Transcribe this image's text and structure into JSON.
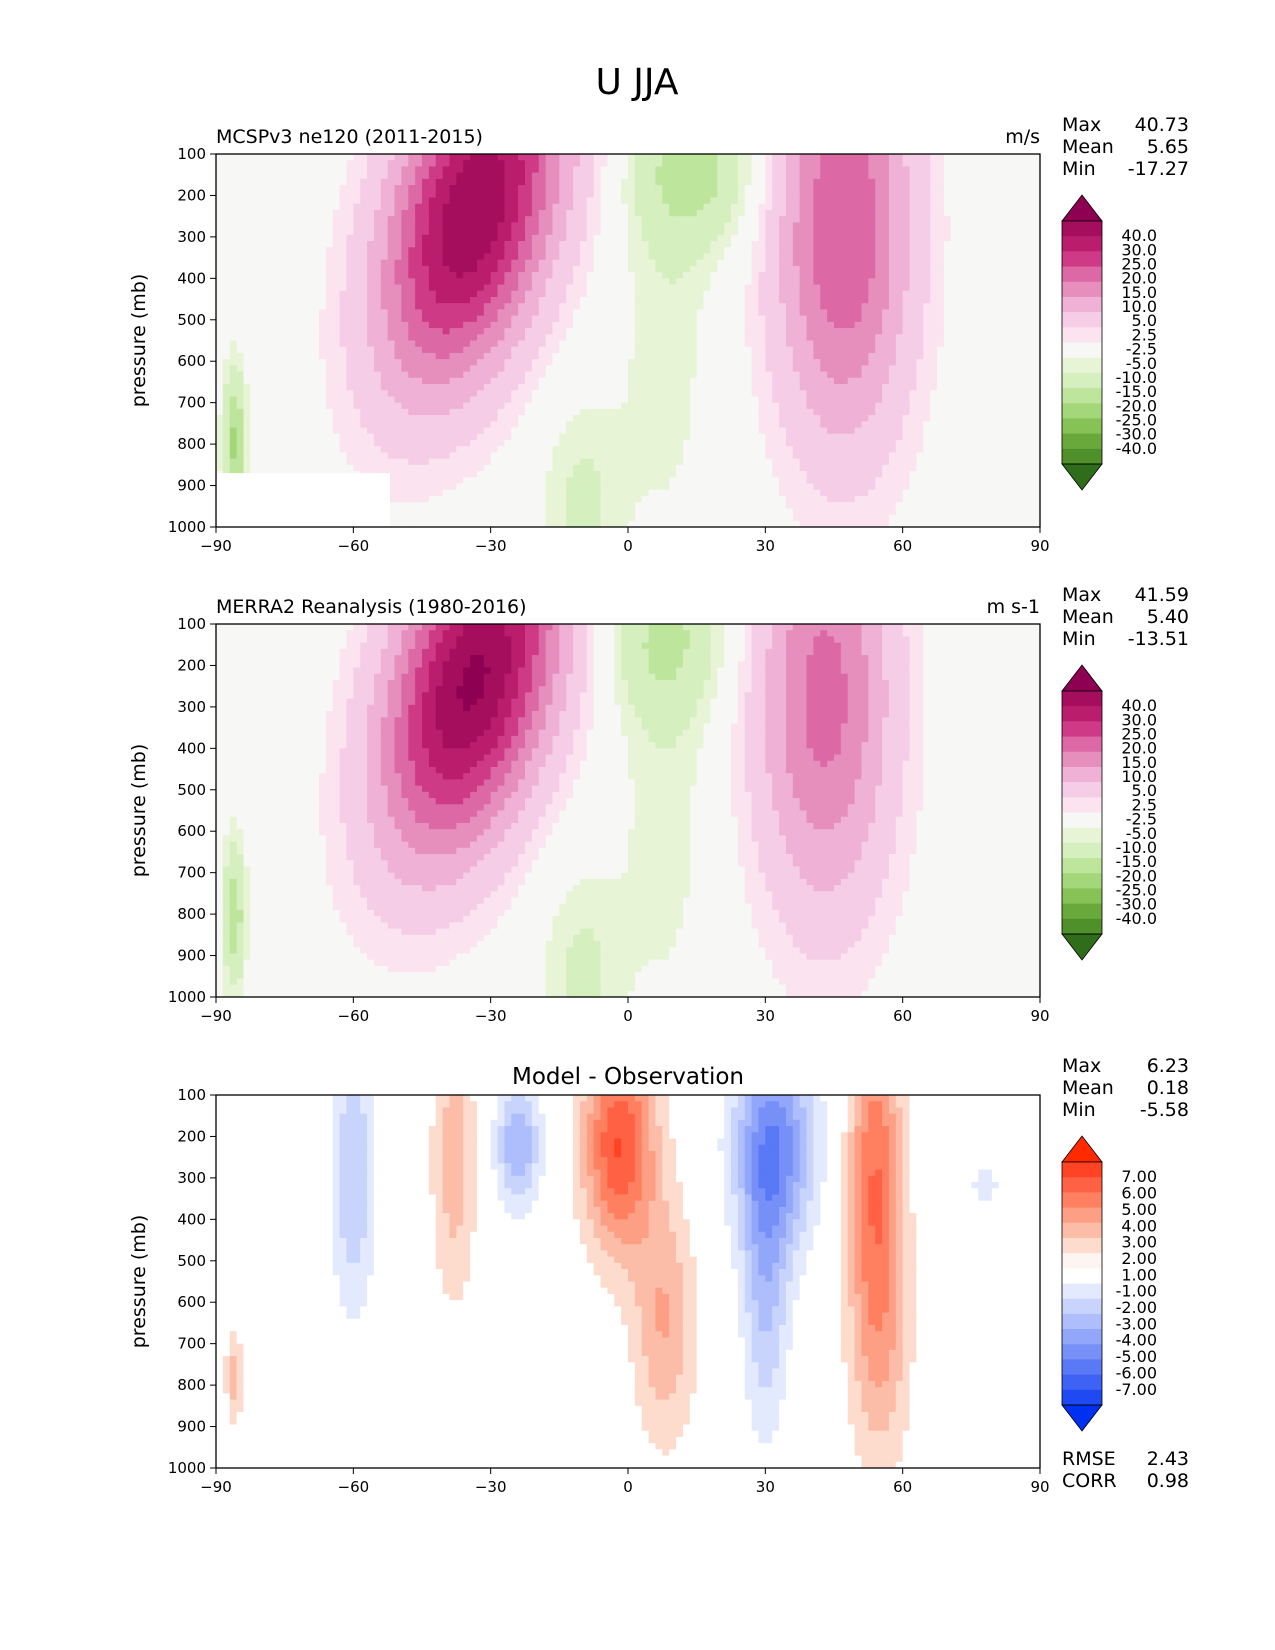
{
  "figure": {
    "suptitle": "U JJA"
  },
  "chart_data": [
    {
      "type": "heatmap",
      "title": "MCSPv3 ne120 (2011-2015)",
      "units": "m/s",
      "xlabel": "",
      "ylabel": "pressure (mb)",
      "xlim": [
        -90,
        90
      ],
      "ylim": [
        1000,
        100
      ],
      "y_scale": "linear, inverted",
      "xticks": [
        "−90",
        "−60",
        "−30",
        "0",
        "30",
        "60",
        "90"
      ],
      "yticks": [
        "100",
        "200",
        "300",
        "400",
        "500",
        "600",
        "700",
        "800",
        "900",
        "1000"
      ],
      "stats": {
        "max": "40.73",
        "mean": "5.65",
        "min": "-17.27"
      },
      "colorbar": {
        "labels": [
          "40.0",
          "30.0",
          "25.0",
          "20.0",
          "15.0",
          "10.0",
          "5.0",
          "2.5",
          "-2.5",
          "-5.0",
          "-10.0",
          "-15.0",
          "-20.0",
          "-25.0",
          "-30.0",
          "-40.0"
        ],
        "colors": [
          "#8e0152",
          "#a50e5d",
          "#bb1d6d",
          "#cf3a86",
          "#dc68a6",
          "#e68fbd",
          "#efb1d5",
          "#f6cde6",
          "#fbe3f0",
          "#f7f7f5",
          "#e7f4d6",
          "#d5efbf",
          "#bde59c",
          "#a3d77a",
          "#86c255",
          "#69a83b",
          "#4f902a",
          "#2f6d1b"
        ]
      },
      "features": [
        {
          "name": "Southern jet core",
          "lat": -30,
          "p": 200,
          "u": 40
        },
        {
          "name": "Northern jet core",
          "lat": 47,
          "p": 200,
          "u": 25
        },
        {
          "name": "Tropical easterlies",
          "lat": 15,
          "p": 120,
          "u": -12
        },
        {
          "name": "Surface easterlies",
          "lat": -10,
          "p": 900,
          "u": -6
        },
        {
          "name": "Polar easterlies",
          "lat": -86,
          "p": 800,
          "u": -16
        }
      ]
    },
    {
      "type": "heatmap",
      "title": "MERRA2 Reanalysis (1980-2016)",
      "units": "m s-1",
      "xlabel": "",
      "ylabel": "pressure (mb)",
      "xlim": [
        -90,
        90
      ],
      "ylim": [
        1000,
        100
      ],
      "y_scale": "linear, inverted",
      "xticks": [
        "−90",
        "−60",
        "−30",
        "0",
        "30",
        "60",
        "90"
      ],
      "yticks": [
        "100",
        "200",
        "300",
        "400",
        "500",
        "600",
        "700",
        "800",
        "900",
        "1000"
      ],
      "stats": {
        "max": "41.59",
        "mean": "5.40",
        "min": "-13.51"
      },
      "colorbar": {
        "labels": [
          "40.0",
          "30.0",
          "25.0",
          "20.0",
          "15.0",
          "10.0",
          "5.0",
          "2.5",
          "-2.5",
          "-5.0",
          "-10.0",
          "-15.0",
          "-20.0",
          "-25.0",
          "-30.0",
          "-40.0"
        ],
        "colors": [
          "#8e0152",
          "#a50e5d",
          "#bb1d6d",
          "#cf3a86",
          "#dc68a6",
          "#e68fbd",
          "#efb1d5",
          "#f6cde6",
          "#fbe3f0",
          "#f7f7f5",
          "#e7f4d6",
          "#d5efbf",
          "#bde59c",
          "#a3d77a",
          "#86c255",
          "#69a83b",
          "#4f902a",
          "#2f6d1b"
        ]
      },
      "features": [
        {
          "name": "Southern jet core",
          "lat": -30,
          "p": 200,
          "u": 41
        },
        {
          "name": "Northern jet core",
          "lat": 43,
          "p": 200,
          "u": 22
        },
        {
          "name": "Tropical easterlies",
          "lat": 8,
          "p": 150,
          "u": -10
        },
        {
          "name": "Surface easterlies",
          "lat": -10,
          "p": 900,
          "u": -6
        },
        {
          "name": "Polar easterlies",
          "lat": -86,
          "p": 800,
          "u": -13
        }
      ]
    },
    {
      "type": "heatmap",
      "title": "Model - Observation",
      "units": "",
      "xlabel": "",
      "ylabel": "pressure (mb)",
      "xlim": [
        -90,
        90
      ],
      "ylim": [
        1000,
        100
      ],
      "y_scale": "linear, inverted",
      "xticks": [
        "−90",
        "−60",
        "−30",
        "0",
        "30",
        "60",
        "90"
      ],
      "yticks": [
        "100",
        "200",
        "300",
        "400",
        "500",
        "600",
        "700",
        "800",
        "900",
        "1000"
      ],
      "stats": {
        "max": "6.23",
        "mean": "0.18",
        "min": "-5.58"
      },
      "metrics": {
        "rmse": "2.43",
        "corr": "0.98"
      },
      "colorbar": {
        "labels": [
          "7.00",
          "6.00",
          "5.00",
          "4.00",
          "3.00",
          "2.00",
          "1.00",
          "-1.00",
          "-2.00",
          "-3.00",
          "-4.00",
          "-5.00",
          "-6.00",
          "-7.00"
        ],
        "colors": [
          "#ff2a00",
          "#ff4324",
          "#ff6144",
          "#ff8060",
          "#fc9f84",
          "#fcbda8",
          "#fddccd",
          "#fdf5f1",
          "#ffffff",
          "#e4eafe",
          "#c9d4fd",
          "#aebdfb",
          "#92a6fa",
          "#7690f8",
          "#5a79f6",
          "#3d62f4",
          "#1f49f2",
          "#0030f0"
        ]
      },
      "features": [
        {
          "name": "Positive bias",
          "lat": -2,
          "p": 200,
          "u": 6
        },
        {
          "name": "Positive bias",
          "lat": 54,
          "p": 200,
          "u": 5
        },
        {
          "name": "Positive bias",
          "lat": -38,
          "p": 200,
          "u": 3
        },
        {
          "name": "Negative bias",
          "lat": 32,
          "p": 180,
          "u": -5.5
        },
        {
          "name": "Negative bias",
          "lat": -24,
          "p": 200,
          "u": -4
        },
        {
          "name": "Negative bias",
          "lat": -60,
          "p": 200,
          "u": -3
        }
      ]
    }
  ],
  "labels": {
    "max": "Max",
    "mean": "Mean",
    "min": "Min",
    "rmse": "RMSE",
    "corr": "CORR"
  }
}
